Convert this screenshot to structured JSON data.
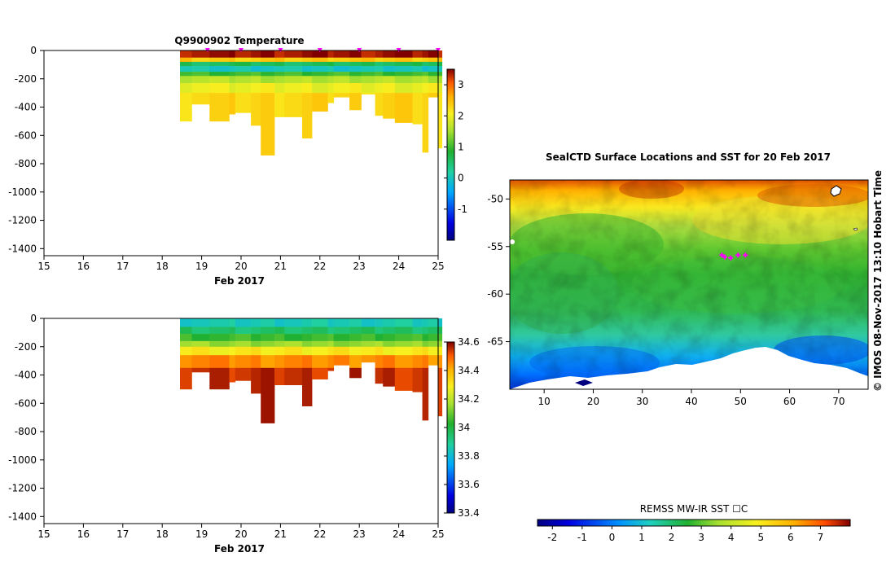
{
  "chart_data": [
    {
      "type": "heatmap",
      "id": "temperature-section",
      "title": "Q9900902  Temperature",
      "xlabel": "Feb 2017",
      "ylabel": "",
      "xlim": [
        15,
        25
      ],
      "ylim": [
        -1450,
        0
      ],
      "x_ticks": [
        15,
        16,
        17,
        18,
        19,
        20,
        21,
        22,
        23,
        24,
        25
      ],
      "y_ticks": [
        0,
        -200,
        -400,
        -600,
        -800,
        -1000,
        -1200,
        -1400
      ],
      "profile_markers_x": [
        19.15,
        20.0,
        21.0,
        22.0,
        23.0,
        24.0,
        25.0
      ],
      "colorbar": {
        "min": -2,
        "max": 3.5,
        "ticks": [
          -1,
          0,
          1,
          2,
          3
        ]
      },
      "profiles": [
        {
          "x0": 18.45,
          "x1": 18.75,
          "depth": 500
        },
        {
          "x0": 18.75,
          "x1": 19.2,
          "depth": 380
        },
        {
          "x0": 19.2,
          "x1": 19.7,
          "depth": 500
        },
        {
          "x0": 19.7,
          "x1": 19.85,
          "depth": 450
        },
        {
          "x0": 19.85,
          "x1": 20.25,
          "depth": 440
        },
        {
          "x0": 20.25,
          "x1": 20.5,
          "depth": 530
        },
        {
          "x0": 20.5,
          "x1": 20.85,
          "depth": 740
        },
        {
          "x0": 20.85,
          "x1": 21.1,
          "depth": 470
        },
        {
          "x0": 21.1,
          "x1": 21.55,
          "depth": 470
        },
        {
          "x0": 21.55,
          "x1": 21.8,
          "depth": 620
        },
        {
          "x0": 21.8,
          "x1": 22.2,
          "depth": 430
        },
        {
          "x0": 22.2,
          "x1": 22.35,
          "depth": 370
        },
        {
          "x0": 22.35,
          "x1": 22.75,
          "depth": 330
        },
        {
          "x0": 22.75,
          "x1": 23.05,
          "depth": 420
        },
        {
          "x0": 23.05,
          "x1": 23.4,
          "depth": 310
        },
        {
          "x0": 23.4,
          "x1": 23.6,
          "depth": 460
        },
        {
          "x0": 23.6,
          "x1": 23.9,
          "depth": 480
        },
        {
          "x0": 23.9,
          "x1": 24.35,
          "depth": 510
        },
        {
          "x0": 24.35,
          "x1": 24.6,
          "depth": 520
        },
        {
          "x0": 24.6,
          "x1": 24.75,
          "depth": 720
        },
        {
          "x0": 24.75,
          "x1": 25.0,
          "depth": 330
        },
        {
          "x0": 25.0,
          "x1": 25.1,
          "depth": 690
        }
      ],
      "layers": [
        {
          "from": 0,
          "to": 50,
          "value": 3.4
        },
        {
          "from": 50,
          "to": 80,
          "value": 2.4
        },
        {
          "from": 80,
          "to": 110,
          "value": 0.6
        },
        {
          "from": 110,
          "to": 150,
          "value": 0.0
        },
        {
          "from": 150,
          "to": 180,
          "value": 1.0
        },
        {
          "from": 180,
          "to": 230,
          "value": 1.6
        },
        {
          "from": 230,
          "to": 300,
          "value": 2.0
        },
        {
          "from": 300,
          "to": 9999,
          "value": 2.3
        }
      ]
    },
    {
      "type": "heatmap",
      "id": "salinity-section",
      "title": "",
      "xlabel": "Feb 2017",
      "ylabel": "",
      "xlim": [
        15,
        25
      ],
      "ylim": [
        -1450,
        0
      ],
      "x_ticks": [
        15,
        16,
        17,
        18,
        19,
        20,
        21,
        22,
        23,
        24,
        25
      ],
      "y_ticks": [
        0,
        -200,
        -400,
        -600,
        -800,
        -1000,
        -1200,
        -1400
      ],
      "colorbar": {
        "min": 33.4,
        "max": 34.6,
        "ticks": [
          34.6,
          34.4,
          34.2,
          34,
          33.8,
          33.6,
          33.4
        ]
      },
      "layers": [
        {
          "from": 0,
          "to": 60,
          "value": 33.85
        },
        {
          "from": 60,
          "to": 110,
          "value": 33.95
        },
        {
          "from": 110,
          "to": 160,
          "value": 34.05
        },
        {
          "from": 160,
          "to": 200,
          "value": 34.15
        },
        {
          "from": 200,
          "to": 260,
          "value": 34.3
        },
        {
          "from": 260,
          "to": 350,
          "value": 34.45
        },
        {
          "from": 350,
          "to": 9999,
          "value": 34.55
        }
      ]
    },
    {
      "type": "heatmap",
      "id": "sst-map",
      "title": "SealCTD Surface Locations and SST for 20 Feb 2017",
      "xlim": [
        3,
        76
      ],
      "ylim": [
        -70,
        -48
      ],
      "x_ticks": [
        10,
        20,
        30,
        40,
        50,
        60,
        70
      ],
      "y_ticks": [
        -50,
        -55,
        -60,
        -65
      ],
      "seal_locations": [
        {
          "lon": 46.2,
          "lat": -55.9
        },
        {
          "lon": 46.8,
          "lat": -56.1
        },
        {
          "lon": 48.0,
          "lat": -56.2
        },
        {
          "lon": 49.5,
          "lat": -55.9
        },
        {
          "lon": 51.0,
          "lat": -55.9
        }
      ],
      "colorbar": {
        "label": "REMSS MW-IR SST ☐C",
        "min": -2.5,
        "max": 8,
        "ticks": [
          -2,
          -1,
          0,
          1,
          2,
          3,
          4,
          5,
          6,
          7
        ]
      }
    }
  ],
  "credit": "©  IMOS 08-Nov-2017 13:10 Hobart Time",
  "colors": {
    "sst_colormap": [
      "#00007f",
      "#0000e0",
      "#0060ff",
      "#00c8ff",
      "#20e0a0",
      "#30c030",
      "#90e030",
      "#f0f020",
      "#ffc000",
      "#ff7000",
      "#d02000",
      "#800000"
    ],
    "marker_magenta": "#ff00ff",
    "land": "#ffffff"
  }
}
